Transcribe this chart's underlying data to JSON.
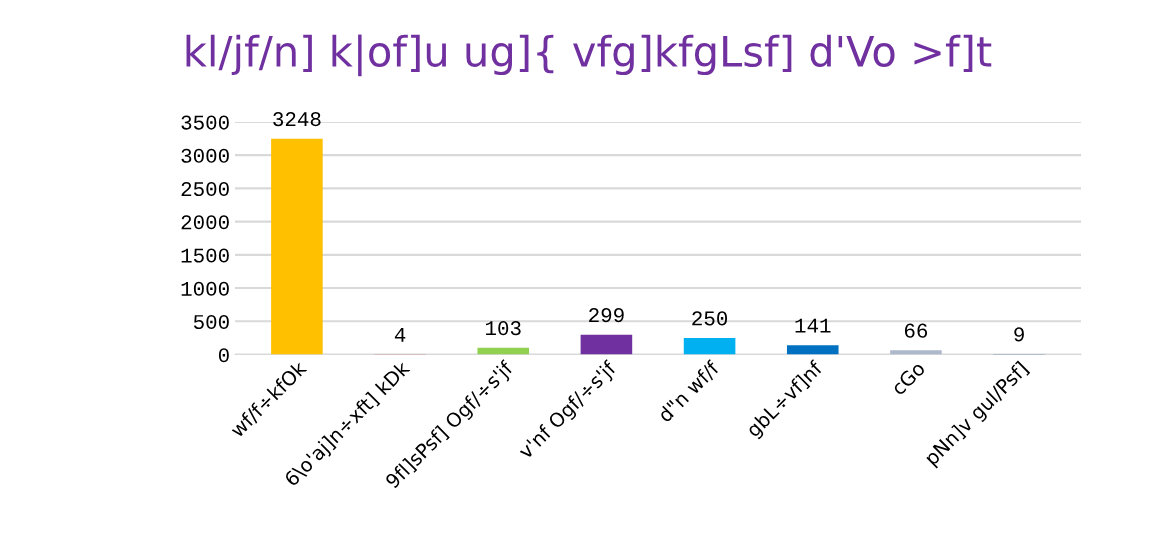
{
  "chart_data": {
    "type": "bar",
    "title": "kl/jf/n] k|of]u ug]{ vfg]kfgLsf] d'Vo >f]t",
    "categories": [
      "wf/f÷kfOk",
      "6\\o'aj]n÷xft] kDk",
      "9fl]sPsf] Ogf/÷s'jf",
      "v'nf Ogf/÷s'jf",
      "d\"n wf/f",
      "gbL÷vf]nf",
      "cGo",
      "pNn]v gul/Psf]"
    ],
    "values": [
      3248,
      4,
      103,
      299,
      250,
      141,
      66,
      9
    ],
    "colors": [
      "#ffc000",
      "#c00000",
      "#92d050",
      "#7030a0",
      "#00b0f0",
      "#0070c0",
      "#adb9ca",
      "#41719c"
    ],
    "data_labels": true,
    "ylim": [
      0,
      3500
    ],
    "yticks": [
      0,
      500,
      1000,
      1500,
      2000,
      2500,
      3000,
      3500
    ],
    "grid": "y"
  }
}
